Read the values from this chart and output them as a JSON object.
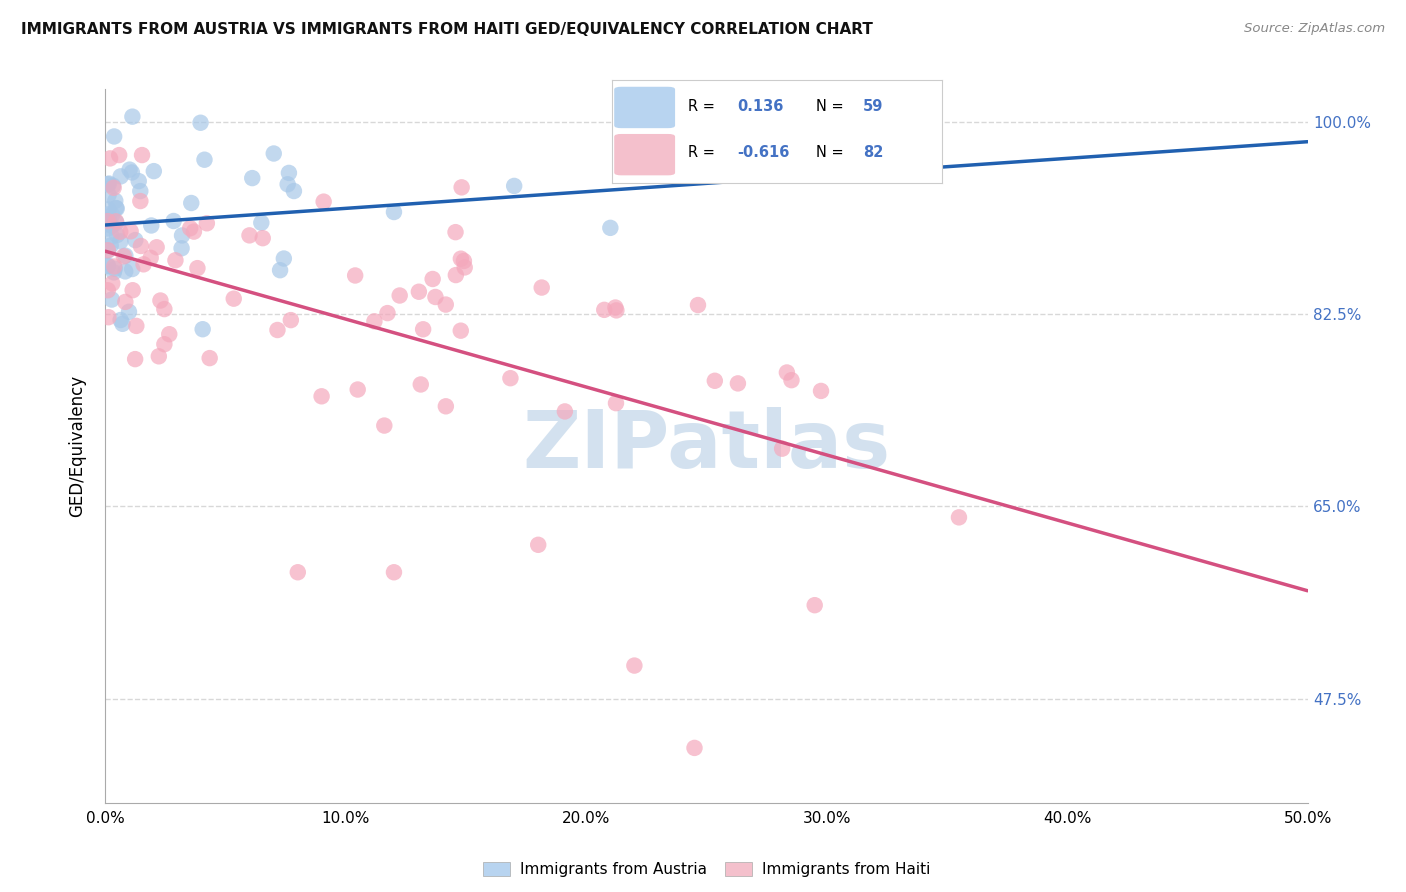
{
  "title": "IMMIGRANTS FROM AUSTRIA VS IMMIGRANTS FROM HAITI GED/EQUIVALENCY CORRELATION CHART",
  "source": "Source: ZipAtlas.com",
  "ylabel": "GED/Equivalency",
  "ytick_labels": [
    "100.0%",
    "82.5%",
    "65.0%",
    "47.5%"
  ],
  "ytick_values": [
    1.0,
    0.825,
    0.65,
    0.475
  ],
  "xmin": 0.0,
  "xmax": 0.5,
  "ymin": 0.38,
  "ymax": 1.03,
  "austria_R": 0.136,
  "austria_N": 59,
  "haiti_R": -0.616,
  "haiti_N": 82,
  "austria_dot_color": "#a8c8e8",
  "haiti_dot_color": "#f4a8bc",
  "austria_line_color": "#2060b0",
  "haiti_line_color": "#d45080",
  "watermark_text": "ZIPatlas",
  "watermark_color": "#c5d8ea",
  "background_color": "#ffffff",
  "grid_color": "#d8d8d8",
  "title_color": "#111111",
  "right_tick_color": "#4472c4",
  "legend_R_color": "#4472c4",
  "legend_austria_patch": "#b8d4f0",
  "legend_haiti_patch": "#f4c0cc",
  "bottom_legend_austria": "Immigrants from Austria",
  "bottom_legend_haiti": "Immigrants from Haiti"
}
